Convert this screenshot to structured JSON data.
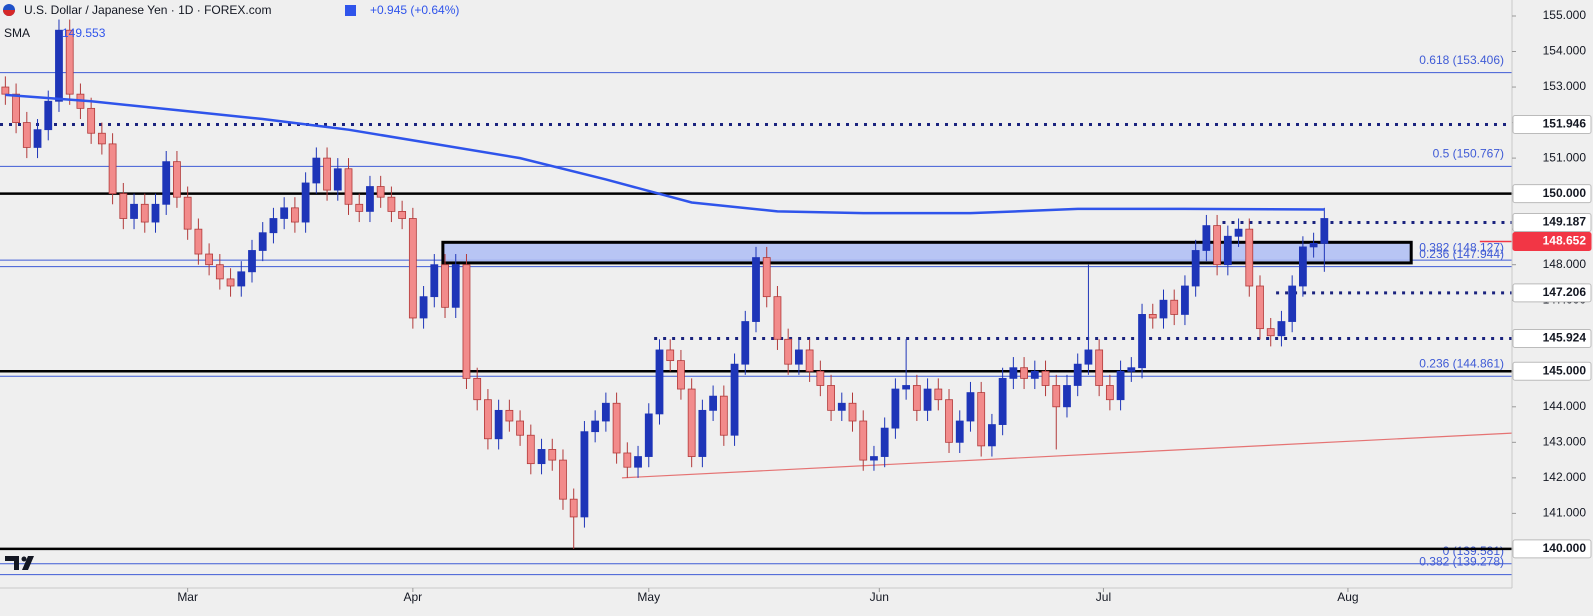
{
  "header": {
    "title": "U.S. Dollar / Japanese Yen · 1D · FOREX.com",
    "change": "+0.945 (+0.64%)"
  },
  "chart_data": {
    "type": "candlestick",
    "up_color": "#1e35b8",
    "down_color": "#f28b8b",
    "open": [
      153.0,
      152.8,
      152.0,
      151.3,
      151.8,
      152.6,
      154.6,
      152.8,
      152.4,
      151.7,
      151.4,
      150.0,
      149.3,
      149.7,
      149.2,
      149.7,
      150.9,
      149.9,
      149.0,
      148.3,
      148.0,
      147.6,
      147.4,
      147.8,
      148.4,
      148.9,
      149.3,
      149.6,
      149.2,
      150.3,
      151.0,
      150.1,
      150.7,
      149.7,
      149.5,
      150.2,
      149.9,
      149.5,
      149.3,
      146.5,
      147.1,
      148.0,
      146.8,
      148.0,
      144.8,
      144.2,
      143.1,
      143.9,
      143.6,
      143.2,
      142.4,
      142.8,
      142.5,
      141.4,
      140.9,
      143.3,
      143.6,
      144.1,
      142.7,
      142.3,
      142.6,
      143.8,
      145.6,
      145.3,
      144.5,
      142.6,
      143.9,
      144.3,
      143.2,
      145.2,
      146.4,
      148.2,
      147.1,
      145.9,
      145.2,
      145.6,
      145.0,
      144.6,
      143.9,
      144.1,
      143.6,
      142.5,
      142.6,
      143.4,
      144.5,
      144.6,
      143.9,
      144.5,
      144.2,
      143.0,
      143.6,
      144.4,
      142.9,
      143.5,
      144.8,
      145.1,
      144.8,
      145.0,
      144.6,
      144.0,
      144.6,
      145.2,
      145.6,
      144.6,
      144.2,
      145.0,
      145.1,
      146.6,
      146.5,
      147.0,
      146.6,
      147.4,
      148.4,
      149.1,
      148.0,
      148.8,
      149.0,
      147.4,
      146.2,
      146.0,
      146.4,
      147.4,
      148.5,
      148.6
    ],
    "high": [
      153.3,
      153.1,
      152.3,
      152.1,
      152.9,
      154.9,
      154.9,
      153.1,
      152.7,
      152.0,
      151.7,
      150.3,
      150.0,
      150.0,
      150.0,
      151.2,
      151.2,
      150.2,
      149.3,
      148.6,
      148.3,
      147.9,
      148.1,
      148.7,
      149.2,
      149.6,
      149.9,
      149.9,
      150.6,
      151.3,
      151.3,
      151.0,
      151.0,
      150.0,
      150.5,
      150.5,
      150.2,
      149.8,
      149.6,
      147.4,
      148.3,
      148.3,
      148.3,
      148.3,
      145.1,
      144.5,
      144.2,
      144.2,
      143.9,
      143.5,
      143.1,
      143.1,
      142.8,
      141.7,
      143.6,
      143.9,
      144.4,
      144.4,
      143.0,
      142.9,
      144.1,
      145.9,
      145.9,
      145.6,
      144.8,
      144.2,
      144.6,
      144.6,
      145.5,
      146.7,
      148.5,
      148.5,
      147.4,
      146.2,
      145.9,
      145.9,
      145.3,
      144.9,
      144.4,
      144.4,
      143.9,
      142.9,
      143.7,
      144.8,
      145.9,
      144.9,
      144.8,
      144.8,
      144.5,
      143.9,
      144.7,
      144.7,
      143.8,
      145.1,
      145.4,
      145.4,
      145.3,
      145.3,
      144.9,
      144.9,
      145.5,
      148.0,
      145.9,
      144.9,
      145.3,
      145.4,
      146.9,
      146.9,
      147.3,
      147.3,
      147.7,
      148.7,
      149.4,
      149.4,
      149.1,
      149.3,
      149.3,
      147.7,
      146.5,
      146.7,
      147.7,
      148.8,
      148.9,
      149.6
    ],
    "low": [
      152.5,
      151.7,
      151.0,
      151.0,
      151.5,
      152.3,
      152.5,
      152.1,
      151.4,
      151.1,
      149.7,
      149.0,
      149.0,
      148.9,
      148.9,
      149.4,
      149.6,
      148.7,
      148.0,
      147.7,
      147.3,
      147.1,
      147.1,
      147.5,
      148.1,
      148.6,
      149.0,
      148.9,
      148.9,
      150.0,
      149.8,
      149.8,
      149.4,
      149.2,
      149.2,
      149.6,
      149.2,
      149.0,
      146.2,
      146.2,
      146.8,
      146.5,
      146.5,
      144.5,
      143.9,
      142.8,
      142.8,
      143.3,
      142.9,
      142.1,
      142.1,
      142.2,
      141.1,
      140.0,
      140.6,
      143.0,
      143.3,
      142.4,
      142.0,
      142.0,
      142.3,
      143.5,
      145.0,
      144.2,
      142.3,
      142.3,
      143.6,
      142.9,
      142.9,
      144.9,
      146.1,
      146.8,
      145.6,
      144.9,
      144.9,
      144.7,
      144.3,
      143.6,
      143.6,
      143.3,
      142.2,
      142.2,
      142.3,
      143.1,
      144.2,
      143.6,
      143.6,
      143.9,
      142.7,
      142.7,
      143.3,
      142.6,
      142.6,
      143.2,
      144.5,
      144.5,
      144.5,
      144.3,
      142.8,
      143.7,
      144.3,
      144.9,
      144.3,
      143.9,
      143.9,
      144.7,
      144.8,
      146.2,
      146.2,
      146.3,
      146.3,
      147.1,
      148.1,
      147.7,
      147.7,
      148.5,
      147.1,
      145.9,
      145.7,
      145.7,
      146.1,
      147.1,
      148.2,
      147.8
    ],
    "close": [
      152.8,
      152.0,
      151.3,
      151.8,
      152.6,
      154.6,
      152.8,
      152.4,
      151.7,
      151.4,
      150.0,
      149.3,
      149.7,
      149.2,
      149.7,
      150.9,
      149.9,
      149.0,
      148.3,
      148.0,
      147.6,
      147.4,
      147.8,
      148.4,
      148.9,
      149.3,
      149.6,
      149.2,
      150.3,
      151.0,
      150.1,
      150.7,
      149.7,
      149.5,
      150.2,
      149.9,
      149.5,
      149.3,
      146.5,
      147.1,
      148.0,
      146.8,
      148.0,
      144.8,
      144.2,
      143.1,
      143.9,
      143.6,
      143.2,
      142.4,
      142.8,
      142.5,
      141.4,
      140.9,
      143.3,
      143.6,
      144.1,
      142.7,
      142.3,
      142.6,
      143.8,
      145.6,
      145.3,
      144.5,
      142.6,
      143.9,
      144.3,
      143.2,
      145.2,
      146.4,
      148.2,
      147.1,
      145.9,
      145.2,
      145.6,
      145.0,
      144.6,
      143.9,
      144.1,
      143.6,
      142.5,
      142.6,
      143.4,
      144.5,
      144.6,
      143.9,
      144.5,
      144.2,
      143.0,
      143.6,
      144.4,
      142.9,
      143.5,
      144.8,
      145.1,
      144.8,
      145.0,
      144.6,
      144.0,
      144.6,
      145.2,
      145.6,
      144.6,
      144.2,
      145.0,
      145.1,
      146.6,
      146.5,
      147.0,
      146.6,
      147.4,
      148.4,
      149.1,
      148.0,
      148.8,
      149.0,
      147.4,
      146.2,
      146.0,
      146.4,
      147.4,
      148.5,
      148.6,
      149.3
    ],
    "xlim": [
      -0.5,
      140.5
    ],
    "ylim": [
      138.9,
      155.45
    ],
    "xticks": [
      {
        "value": 17,
        "label": "Mar"
      },
      {
        "value": 38,
        "label": "Apr"
      },
      {
        "value": 60,
        "label": "May"
      },
      {
        "value": 81.5,
        "label": "Jun"
      },
      {
        "value": 102.4,
        "label": "Jul"
      },
      {
        "value": 125.2,
        "label": "Aug"
      }
    ],
    "yticks": [
      {
        "value": 155,
        "label": "155.000"
      },
      {
        "value": 154,
        "label": "154.000"
      },
      {
        "value": 153,
        "label": "153.000"
      },
      {
        "value": 152,
        "label": "152.000"
      },
      {
        "value": 151,
        "label": "151.000"
      },
      {
        "value": 150,
        "label": "150.000"
      },
      {
        "value": 149,
        "label": "149.000"
      },
      {
        "value": 148,
        "label": "148.000"
      },
      {
        "value": 147,
        "label": "147.000"
      },
      {
        "value": 146,
        "label": "146.000"
      },
      {
        "value": 145,
        "label": "145.000"
      },
      {
        "value": 144,
        "label": "144.000"
      },
      {
        "value": 143,
        "label": "143.000"
      },
      {
        "value": 142,
        "label": "142.000"
      },
      {
        "value": 141,
        "label": "141.000"
      },
      {
        "value": 140,
        "label": "140.000"
      }
    ],
    "sma": {
      "name": "SMA",
      "color": "#2f54eb",
      "x": [
        0,
        8,
        16,
        24,
        32,
        40,
        48,
        56,
        64,
        72,
        80,
        90,
        100,
        110,
        123
      ],
      "values": [
        152.78,
        152.6,
        152.35,
        152.1,
        151.8,
        151.4,
        151.0,
        150.4,
        149.75,
        149.5,
        149.45,
        149.45,
        149.57,
        149.57,
        149.553
      ]
    },
    "zone": {
      "x": [
        40.8,
        131.1
      ],
      "y": [
        148.05,
        148.63
      ],
      "color": "#aebdf5"
    },
    "trendline": {
      "x": [
        57.5,
        140.5
      ],
      "values": [
        142.0,
        143.26
      ],
      "color": "#e57373"
    },
    "levels": [
      {
        "value": 151.946,
        "label": "151.946",
        "style": "dotted",
        "from": -0.5,
        "color": "#1a237e"
      },
      {
        "value": 150,
        "label": "150.000",
        "style": "solid",
        "from": -0.5,
        "color": "#000000"
      },
      {
        "value": 149.187,
        "label": "149.187",
        "style": "dotted",
        "from": 113.5,
        "color": "#1a237e"
      },
      {
        "value": 148.652,
        "label": "148.652",
        "style": "current",
        "from": 137.5,
        "color": "#f23645"
      },
      {
        "value": 147.206,
        "label": "147.206",
        "style": "dotted",
        "from": 118.5,
        "color": "#1a237e"
      },
      {
        "value": 145.924,
        "label": "145.924",
        "style": "dotted",
        "from": 60.5,
        "color": "#1a237e"
      },
      {
        "value": 145,
        "label": "145.000",
        "style": "solid",
        "from": -0.5,
        "color": "#000000"
      },
      {
        "value": 140,
        "label": "140.000",
        "style": "solid",
        "from": -0.5,
        "color": "#000000"
      }
    ],
    "fibs": [
      {
        "value": 153.406,
        "label": "0.618 (153.406)"
      },
      {
        "value": 150.767,
        "label": "0.5 (150.767)"
      },
      {
        "value": 148.127,
        "label": "0.382 (148.127)"
      },
      {
        "value": 147.944,
        "label": "0.236 (147.944)"
      },
      {
        "value": 144.861,
        "label": "0.236 (144.861)"
      },
      {
        "value": 139.581,
        "label": "0 (139.581)"
      },
      {
        "value": 139.278,
        "label": "0.382 (139.278)"
      }
    ],
    "fib_color": "#3f5bd6"
  }
}
